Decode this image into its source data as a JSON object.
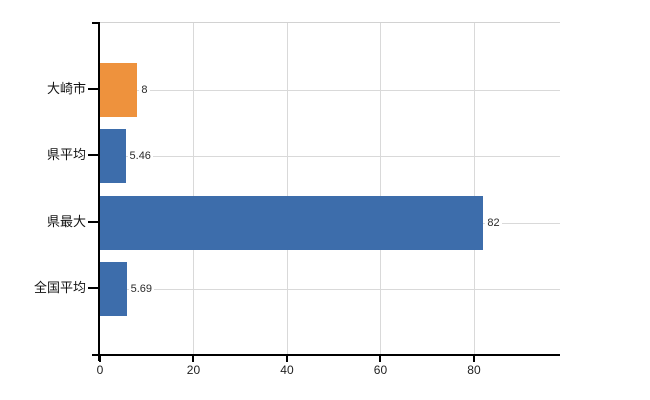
{
  "chart_data": {
    "type": "bar",
    "orientation": "horizontal",
    "title": "",
    "xlabel": "",
    "ylabel": "",
    "categories": [
      "大崎市",
      "県平均",
      "県最大",
      "全国平均"
    ],
    "values": [
      8,
      5.46,
      82,
      5.69
    ],
    "value_labels": [
      "8",
      "5.46",
      "82",
      "5.69"
    ],
    "bar_colors": [
      "#ee923d",
      "#3d6dab",
      "#3d6dab",
      "#3d6dab"
    ],
    "x_ticks": [
      0,
      20,
      40,
      60,
      80
    ],
    "x_tick_labels": [
      "0",
      "20",
      "40",
      "60",
      "80"
    ],
    "xlim": [
      0,
      98.4
    ],
    "grid": true,
    "legend": false,
    "colors": {
      "highlight_bar": "#ee923d",
      "default_bar": "#3d6dab",
      "grid": "#d9d9d9",
      "axis": "#000000",
      "text": "#222222"
    }
  }
}
